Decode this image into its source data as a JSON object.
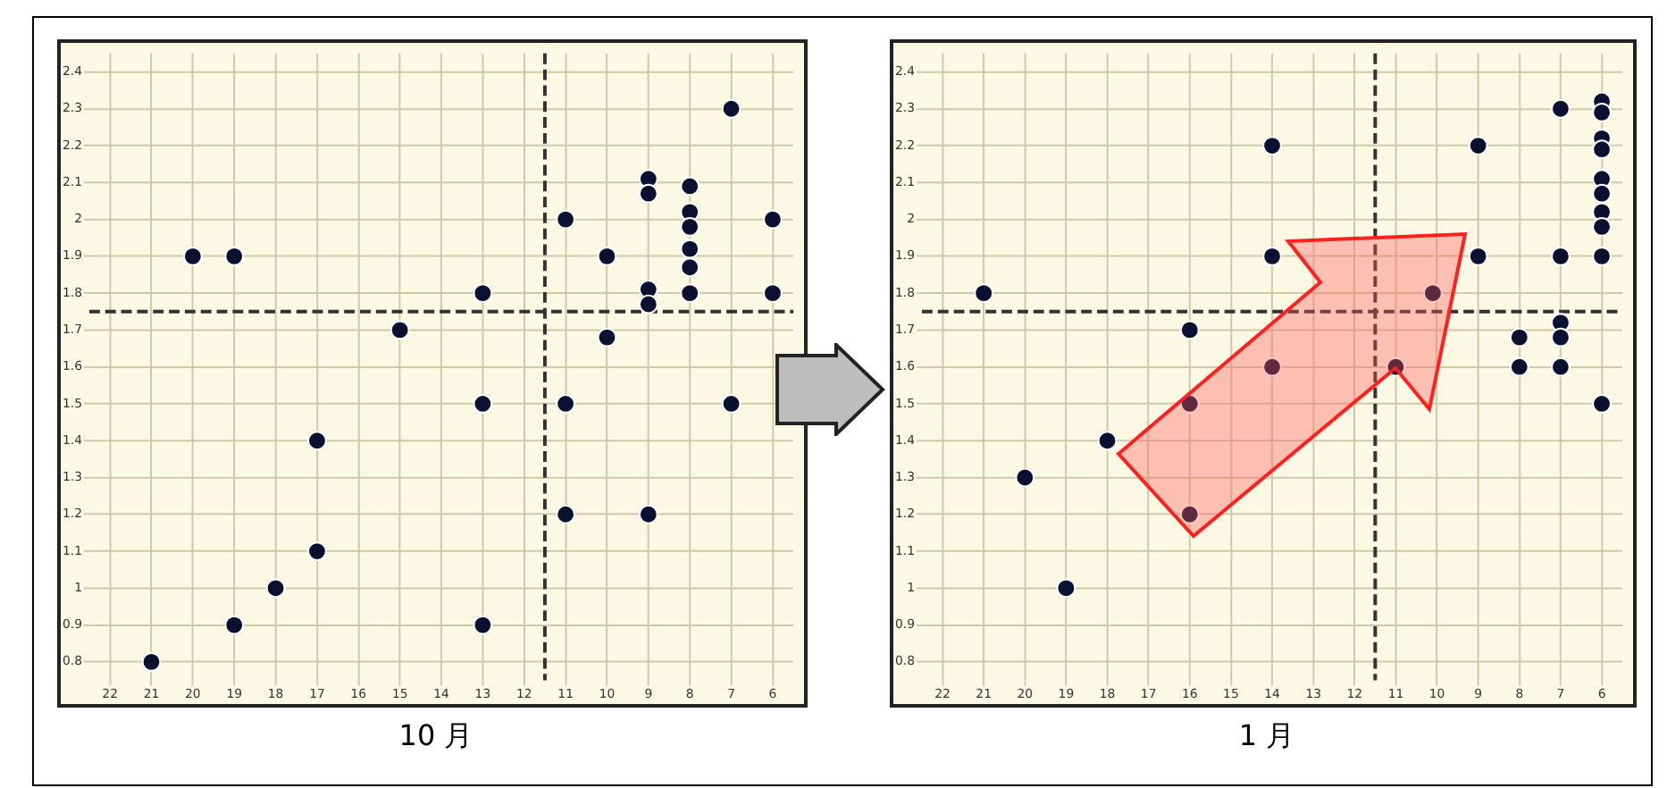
{
  "chart_data": [
    {
      "type": "scatter",
      "xlabel": "10 月",
      "xlim": [
        22.5,
        5.5
      ],
      "ylim": [
        0.75,
        2.45
      ],
      "xticks": [
        22,
        21,
        20,
        19,
        18,
        17,
        16,
        15,
        14,
        13,
        12,
        11,
        10,
        9,
        8,
        7,
        6
      ],
      "yticks": [
        0.8,
        0.9,
        1,
        1.1,
        1.2,
        1.3,
        1.4,
        1.5,
        1.6,
        1.7,
        1.8,
        1.9,
        2,
        2.1,
        2.2,
        2.3,
        2.4
      ],
      "grid": true,
      "legend": false,
      "marker": "circle",
      "ref_lines": [
        {
          "axis": "x",
          "value": 11.5,
          "color": "#333333",
          "line_style": "dashed"
        },
        {
          "axis": "y",
          "value": 1.75,
          "color": "#333333",
          "line_style": "dashed"
        }
      ],
      "series": [
        {
          "color": "#0a1030",
          "x": [
            7,
            9,
            9,
            8,
            11,
            8,
            8,
            6,
            20,
            19,
            10,
            8,
            8,
            13,
            9,
            9,
            8,
            6,
            15,
            10,
            13,
            11,
            7,
            17,
            11,
            9,
            17,
            18,
            19,
            13,
            21
          ],
          "values": [
            2.3,
            2.11,
            2.07,
            2.09,
            2.0,
            2.02,
            1.98,
            2.0,
            1.9,
            1.9,
            1.9,
            1.92,
            1.87,
            1.8,
            1.81,
            1.77,
            1.8,
            1.8,
            1.7,
            1.68,
            1.5,
            1.5,
            1.5,
            1.4,
            1.2,
            1.2,
            1.1,
            1.0,
            0.9,
            0.9,
            0.8
          ]
        }
      ]
    },
    {
      "type": "scatter",
      "xlabel": "1 月",
      "xlim": [
        22.5,
        5.5
      ],
      "ylim": [
        0.75,
        2.45
      ],
      "xticks": [
        22,
        21,
        20,
        19,
        18,
        17,
        16,
        15,
        14,
        13,
        12,
        11,
        10,
        9,
        8,
        7,
        6
      ],
      "yticks": [
        0.8,
        0.9,
        1,
        1.1,
        1.2,
        1.3,
        1.4,
        1.5,
        1.6,
        1.7,
        1.8,
        1.9,
        2,
        2.1,
        2.2,
        2.3,
        2.4
      ],
      "grid": true,
      "legend": false,
      "marker": "circle",
      "ref_lines": [
        {
          "axis": "x",
          "value": 11.5,
          "color": "#333333",
          "line_style": "dashed"
        },
        {
          "axis": "y",
          "value": 1.75,
          "color": "#333333",
          "line_style": "dashed"
        }
      ],
      "series": [
        {
          "color": "#0a1030",
          "x": [
            7,
            6,
            6,
            6,
            6,
            6,
            6,
            6,
            6,
            14,
            9,
            14,
            9,
            7,
            6,
            21,
            10.1,
            16,
            7,
            7,
            8,
            14,
            11,
            8,
            7,
            16,
            6,
            18,
            20,
            16,
            19
          ],
          "values": [
            2.3,
            2.32,
            2.29,
            2.22,
            2.19,
            2.11,
            2.07,
            2.02,
            1.98,
            2.2,
            2.2,
            1.9,
            1.9,
            1.9,
            1.9,
            1.8,
            1.8,
            1.7,
            1.72,
            1.68,
            1.68,
            1.6,
            1.6,
            1.6,
            1.6,
            1.5,
            1.5,
            1.4,
            1.3,
            1.2,
            1.0
          ]
        }
      ]
    }
  ]
}
